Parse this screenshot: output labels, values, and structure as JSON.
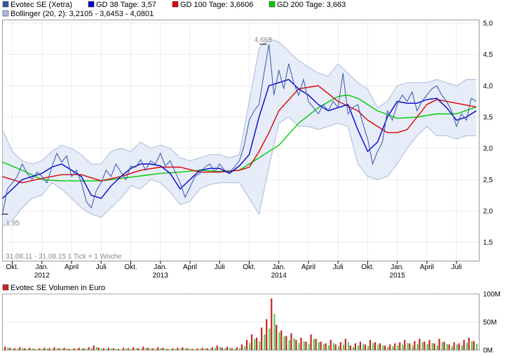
{
  "chart_data": [
    {
      "type": "line",
      "legend": [
        {
          "label": "Evotec SE (Xetra)",
          "color": "#3355aa"
        },
        {
          "label": "GD 38 Tage: 3,57",
          "color": "#0000cc"
        },
        {
          "label": "GD 100 Tage: 3,6606",
          "color": "#dd0000"
        },
        {
          "label": "GD 200 Tage: 3,663",
          "color": "#00cc00"
        },
        {
          "label": "Bollinger (20, 2): 3,2105 - 3,6453 - 4,0801",
          "color": "#aabbdd"
        }
      ],
      "period_note": "31.08.11 - 31.08.15   1 Tick = 1 Woche",
      "ylim": [
        1.2,
        5.05
      ],
      "y_ticks": [
        "5,0",
        "4,5",
        "4,0",
        "3,5",
        "3,0",
        "2,5",
        "2,0",
        "1,5"
      ],
      "y_tick_values": [
        5.0,
        4.5,
        4.0,
        3.5,
        3.0,
        2.5,
        2.0,
        1.5
      ],
      "xlim": [
        0,
        48.3
      ],
      "x_ticks": [
        {
          "label": "Okt.",
          "x": 1
        },
        {
          "label": "Jan.",
          "x": 4
        },
        {
          "label": "April",
          "x": 7
        },
        {
          "label": "Juli",
          "x": 10
        },
        {
          "label": "Okt.",
          "x": 13
        },
        {
          "label": "Jan.",
          "x": 16
        },
        {
          "label": "April",
          "x": 19
        },
        {
          "label": "Juli",
          "x": 22
        },
        {
          "label": "Okt.",
          "x": 25
        },
        {
          "label": "Jan.",
          "x": 28
        },
        {
          "label": "April",
          "x": 31
        },
        {
          "label": "Juli",
          "x": 34
        },
        {
          "label": "Okt.",
          "x": 37
        },
        {
          "label": "Jan.",
          "x": 40
        },
        {
          "label": "April",
          "x": 43
        },
        {
          "label": "Juli",
          "x": 46
        }
      ],
      "years": [
        {
          "label": "2012",
          "x": 4
        },
        {
          "label": "2013",
          "x": 16
        },
        {
          "label": "2014",
          "x": 28
        },
        {
          "label": "2015",
          "x": 40
        }
      ],
      "annotations": [
        {
          "label": "4,663",
          "x": 26.4,
          "y": 4.663
        },
        {
          "label": "1,95",
          "x": 0.15,
          "y": 1.95
        }
      ],
      "series": [
        {
          "name": "Evotec SE (Xetra)",
          "color": "#3355aa",
          "x": [
            0,
            0.5,
            1,
            1.5,
            2,
            2.5,
            3,
            3.5,
            4,
            4.5,
            5,
            5.5,
            6,
            6.5,
            7,
            7.5,
            8,
            8.5,
            9,
            9.5,
            10,
            10.5,
            11,
            11.5,
            12,
            12.5,
            13,
            13.5,
            14,
            14.5,
            15,
            15.5,
            16,
            16.5,
            17,
            17.5,
            18,
            18.5,
            19,
            19.5,
            20,
            20.5,
            21,
            21.5,
            22,
            22.5,
            23,
            23.5,
            24,
            24.5,
            25,
            25.5,
            26,
            26.5,
            27,
            27.5,
            28,
            28.5,
            29,
            29.5,
            30,
            30.5,
            31,
            31.5,
            32,
            32.5,
            33,
            33.5,
            34,
            34.5,
            35,
            35.5,
            36,
            36.5,
            37,
            37.5,
            38,
            38.5,
            39,
            39.5,
            40,
            40.5,
            41,
            41.5,
            42,
            42.5,
            43,
            43.5,
            44,
            44.5,
            45,
            45.5,
            46,
            46.5,
            47,
            47.5,
            48
          ],
          "values": [
            1.95,
            2.35,
            2.45,
            2.55,
            2.75,
            2.6,
            2.5,
            2.62,
            2.55,
            2.45,
            2.7,
            2.92,
            2.78,
            2.88,
            2.55,
            2.65,
            2.45,
            2.15,
            2.05,
            2.32,
            2.45,
            2.65,
            2.55,
            2.75,
            2.62,
            2.5,
            2.72,
            2.7,
            2.82,
            2.65,
            2.8,
            2.75,
            2.92,
            2.72,
            2.8,
            2.62,
            2.45,
            2.22,
            2.38,
            2.55,
            2.6,
            2.7,
            2.75,
            2.62,
            2.75,
            2.65,
            2.62,
            2.7,
            2.8,
            3.05,
            3.45,
            3.6,
            3.7,
            4.2,
            4.663,
            3.85,
            4.25,
            3.95,
            4.35,
            4.05,
            3.85,
            4.1,
            3.75,
            3.65,
            3.55,
            3.7,
            3.6,
            3.75,
            3.65,
            4.2,
            3.55,
            3.65,
            3.7,
            3.4,
            3.15,
            2.75,
            2.95,
            3.1,
            3.6,
            3.45,
            3.7,
            3.85,
            3.75,
            3.9,
            3.6,
            3.75,
            3.85,
            3.95,
            4.0,
            3.85,
            3.75,
            3.6,
            3.35,
            3.55,
            3.45,
            3.8,
            3.75
          ]
        },
        {
          "name": "GD 38 Tage",
          "color": "#0000cc",
          "x": [
            0,
            1,
            2,
            3,
            4,
            5,
            6,
            7,
            8,
            9,
            10,
            11,
            12,
            13,
            14,
            15,
            16,
            17,
            18,
            19,
            20,
            21,
            22,
            23,
            24,
            25,
            26,
            27,
            28,
            29,
            30,
            31,
            32,
            33,
            34,
            35,
            36,
            37,
            38,
            39,
            40,
            41,
            42,
            43,
            44,
            45,
            46,
            47,
            48
          ],
          "values": [
            2.2,
            2.35,
            2.5,
            2.55,
            2.6,
            2.7,
            2.75,
            2.65,
            2.55,
            2.25,
            2.2,
            2.4,
            2.55,
            2.68,
            2.75,
            2.75,
            2.72,
            2.6,
            2.35,
            2.5,
            2.65,
            2.68,
            2.68,
            2.6,
            2.72,
            2.9,
            3.5,
            4.0,
            4.05,
            4.1,
            3.95,
            3.85,
            3.7,
            3.6,
            3.65,
            3.7,
            3.3,
            2.95,
            3.1,
            3.5,
            3.75,
            3.72,
            3.72,
            3.78,
            3.8,
            3.65,
            3.45,
            3.5,
            3.6
          ]
        },
        {
          "name": "GD 100 Tage",
          "color": "#dd0000",
          "x": [
            0,
            2,
            4,
            6,
            8,
            10,
            12,
            14,
            16,
            18,
            20,
            22,
            24,
            25,
            26,
            27,
            28,
            30,
            32,
            34,
            36,
            37,
            38,
            39,
            40,
            41,
            42,
            43,
            44,
            46,
            48
          ],
          "values": [
            2.55,
            2.45,
            2.52,
            2.58,
            2.58,
            2.48,
            2.55,
            2.65,
            2.7,
            2.7,
            2.62,
            2.62,
            2.65,
            2.7,
            2.95,
            3.25,
            3.6,
            3.95,
            4.0,
            3.75,
            3.6,
            3.45,
            3.35,
            3.25,
            3.25,
            3.3,
            3.5,
            3.7,
            3.78,
            3.72,
            3.66
          ]
        },
        {
          "name": "GD 200 Tage",
          "color": "#00cc00",
          "x": [
            0,
            2,
            4,
            6,
            8,
            10,
            12,
            14,
            16,
            18,
            20,
            22,
            24,
            26,
            28,
            30,
            32,
            34,
            35,
            36,
            38,
            40,
            42,
            44,
            46,
            48
          ],
          "values": [
            2.78,
            2.65,
            2.5,
            2.48,
            2.48,
            2.48,
            2.52,
            2.56,
            2.6,
            2.62,
            2.65,
            2.63,
            2.65,
            2.85,
            3.05,
            3.4,
            3.65,
            3.83,
            3.85,
            3.8,
            3.6,
            3.48,
            3.5,
            3.55,
            3.55,
            3.66
          ]
        },
        {
          "name": "Bollinger oben",
          "color": "#aabbdd",
          "x": [
            0,
            1,
            2,
            3,
            4,
            5,
            6,
            7,
            8,
            9,
            10,
            11,
            12,
            13,
            14,
            15,
            16,
            17,
            18,
            19,
            20,
            21,
            22,
            23,
            24,
            25,
            26,
            27,
            28,
            29,
            30,
            31,
            32,
            33,
            34,
            35,
            36,
            37,
            38,
            39,
            40,
            41,
            42,
            43,
            44,
            45,
            46,
            47,
            48
          ],
          "values": [
            3.3,
            2.95,
            2.8,
            2.75,
            2.8,
            2.95,
            3.05,
            3.0,
            2.9,
            2.75,
            2.75,
            2.95,
            3.0,
            2.95,
            3.1,
            3.0,
            3.05,
            3.0,
            2.85,
            2.8,
            2.85,
            2.9,
            2.9,
            2.85,
            2.9,
            3.75,
            4.6,
            4.75,
            4.7,
            4.55,
            4.4,
            4.3,
            4.2,
            4.15,
            4.35,
            4.2,
            4.05,
            3.95,
            3.65,
            3.75,
            4.0,
            4.05,
            4.05,
            4.05,
            4.1,
            4.05,
            4.0,
            4.1,
            4.1
          ]
        },
        {
          "name": "Bollinger unten",
          "color": "#aabbdd",
          "x": [
            0,
            1,
            2,
            3,
            4,
            5,
            6,
            7,
            8,
            9,
            10,
            11,
            12,
            13,
            14,
            15,
            16,
            17,
            18,
            19,
            20,
            21,
            22,
            23,
            24,
            25,
            26,
            27,
            28,
            29,
            30,
            31,
            32,
            33,
            34,
            35,
            36,
            37,
            38,
            39,
            40,
            41,
            42,
            43,
            44,
            45,
            46,
            47,
            48
          ],
          "values": [
            1.75,
            1.85,
            2.05,
            2.2,
            2.25,
            2.45,
            2.35,
            2.2,
            2.05,
            1.95,
            1.9,
            2.05,
            2.2,
            2.4,
            2.35,
            2.5,
            2.45,
            2.3,
            2.1,
            2.15,
            2.35,
            2.42,
            2.45,
            2.45,
            2.45,
            2.2,
            1.95,
            2.7,
            3.4,
            3.5,
            3.35,
            3.35,
            3.3,
            3.35,
            3.4,
            3.35,
            2.75,
            2.55,
            2.5,
            2.55,
            2.75,
            3.0,
            3.2,
            3.35,
            3.2,
            3.2,
            3.15,
            3.2,
            3.2
          ]
        }
      ]
    },
    {
      "type": "bar",
      "title": "Evotec SE Volumen in Euro",
      "color": "#cc2222",
      "ylim": [
        0,
        100
      ],
      "y_ticks": [
        "100M",
        "50M",
        "0M"
      ],
      "y_tick_values": [
        100,
        50,
        0
      ],
      "xlim": [
        0,
        48.3
      ],
      "x": [
        0.25,
        0.75,
        1.25,
        1.75,
        2.25,
        2.75,
        3.25,
        3.75,
        4.25,
        4.75,
        5.25,
        5.75,
        6.25,
        6.75,
        7.25,
        7.75,
        8.25,
        8.75,
        9.25,
        9.75,
        10.25,
        10.75,
        11.25,
        11.75,
        12.25,
        12.75,
        13.25,
        13.75,
        14.25,
        14.75,
        15.25,
        15.75,
        16.25,
        16.75,
        17.25,
        17.75,
        18.25,
        18.75,
        19.25,
        19.75,
        20.25,
        20.75,
        21.25,
        21.75,
        22.25,
        22.75,
        23.25,
        23.75,
        24.25,
        24.75,
        25.25,
        25.75,
        26.25,
        26.75,
        27.25,
        27.75,
        28.25,
        28.75,
        29.25,
        29.75,
        30.25,
        30.75,
        31.25,
        31.75,
        32.25,
        32.75,
        33.25,
        33.75,
        34.25,
        34.75,
        35.25,
        35.75,
        36.25,
        36.75,
        37.25,
        37.75,
        38.25,
        38.75,
        39.25,
        39.75,
        40.25,
        40.75,
        41.25,
        41.75,
        42.25,
        42.75,
        43.25,
        43.75,
        44.25,
        44.75,
        45.25,
        45.75,
        46.25,
        46.75,
        47.25,
        47.75
      ],
      "values": [
        6,
        4,
        3,
        5,
        3,
        4,
        2,
        3,
        4,
        3,
        5,
        3,
        4,
        2,
        3,
        4,
        3,
        5,
        8,
        4,
        3,
        4,
        3,
        2,
        4,
        3,
        5,
        3,
        6,
        4,
        3,
        5,
        4,
        2,
        3,
        4,
        5,
        3,
        2,
        3,
        4,
        3,
        5,
        8,
        4,
        6,
        3,
        5,
        10,
        18,
        28,
        22,
        40,
        55,
        92,
        45,
        35,
        25,
        30,
        18,
        22,
        15,
        28,
        20,
        15,
        12,
        18,
        10,
        14,
        20,
        8,
        12,
        15,
        10,
        18,
        14,
        12,
        8,
        10,
        12,
        14,
        18,
        12,
        16,
        20,
        15,
        18,
        12,
        20,
        15,
        10,
        14,
        12,
        18,
        22,
        16
      ]
    }
  ]
}
